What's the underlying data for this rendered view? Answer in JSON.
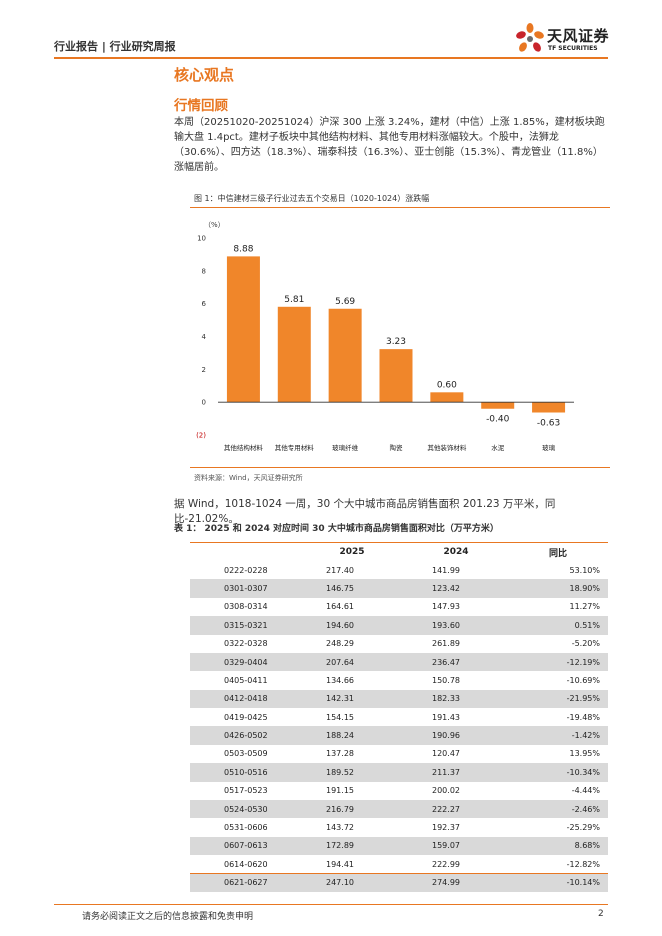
{
  "header": {
    "title": "行业报告 | 行业研究周报"
  },
  "logo": {
    "name_cn": "天风证券",
    "name_en": "TF SECURITIES"
  },
  "section": {
    "title": "核心观点",
    "subtitle": "行情回顾"
  },
  "paragraph1": "本周（20251020-20251024）沪深 300 上涨 3.24%，建材（中信）上涨 1.85%，建材板块跑输大盘 1.4pct。建材子板块中其他结构材料、其他专用材料涨幅较大。个股中，法狮龙（30.6%）、四方达（18.3%）、瑞泰科技（16.3%）、亚士创能（15.3%）、青龙管业（11.8%）涨幅居前。",
  "figure": {
    "caption": "图 1：中信建材三级子行业过去五个交易日（1020-1024）涨跌幅",
    "source": "资料来源：Wind，天风证券研究所"
  },
  "chart_data": {
    "type": "bar",
    "title": "中信建材三级子行业过去五个交易日（1020-1024）涨跌幅",
    "ylabel": "（%）",
    "ylim": [
      -2,
      10
    ],
    "yticks": [
      "10",
      "8",
      "6",
      "4",
      "2",
      "0",
      "(2)"
    ],
    "categories": [
      "其他结构材料",
      "其他专用材料",
      "玻璃纤维",
      "陶瓷",
      "其他装饰材料",
      "水泥",
      "玻璃"
    ],
    "values": [
      8.88,
      5.81,
      5.69,
      3.23,
      0.6,
      -0.4,
      -0.63
    ],
    "value_labels": [
      "8.88",
      "5.81",
      "5.69",
      "3.23",
      "0.60",
      "-0.40",
      "-0.63"
    ],
    "bar_color": "#f0862a"
  },
  "paragraph2": "据 Wind，1018-1024 一周，30 个大中城市商品房销售面积 201.23 万平米，同比-21.02%。",
  "table": {
    "title": "表 1：  2025 和 2024 对应时间 30 大中城市商品房销售面积对比（万平方米）",
    "headers": [
      "",
      "2025",
      "2024",
      "同比"
    ],
    "rows": [
      [
        "0222-0228",
        "217.40",
        "141.99",
        "53.10%"
      ],
      [
        "0301-0307",
        "146.75",
        "123.42",
        "18.90%"
      ],
      [
        "0308-0314",
        "164.61",
        "147.93",
        "11.27%"
      ],
      [
        "0315-0321",
        "194.60",
        "193.60",
        "0.51%"
      ],
      [
        "0322-0328",
        "248.29",
        "261.89",
        "-5.20%"
      ],
      [
        "0329-0404",
        "207.64",
        "236.47",
        "-12.19%"
      ],
      [
        "0405-0411",
        "134.66",
        "150.78",
        "-10.69%"
      ],
      [
        "0412-0418",
        "142.31",
        "182.33",
        "-21.95%"
      ],
      [
        "0419-0425",
        "154.15",
        "191.43",
        "-19.48%"
      ],
      [
        "0426-0502",
        "188.24",
        "190.96",
        "-1.42%"
      ],
      [
        "0503-0509",
        "137.28",
        "120.47",
        "13.95%"
      ],
      [
        "0510-0516",
        "189.52",
        "211.37",
        "-10.34%"
      ],
      [
        "0517-0523",
        "191.15",
        "200.02",
        "-4.44%"
      ],
      [
        "0524-0530",
        "216.79",
        "222.27",
        "-2.46%"
      ],
      [
        "0531-0606",
        "143.72",
        "192.37",
        "-25.29%"
      ],
      [
        "0607-0613",
        "172.89",
        "159.07",
        "8.68%"
      ],
      [
        "0614-0620",
        "194.41",
        "222.99",
        "-12.82%"
      ],
      [
        "0621-0627",
        "247.10",
        "274.99",
        "-10.14%"
      ]
    ]
  },
  "footer": {
    "disclaimer": "请务必阅读正文之后的信息披露和免责申明",
    "page": "2"
  }
}
